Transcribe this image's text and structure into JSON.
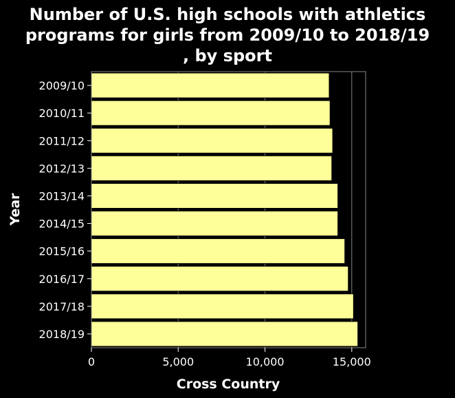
{
  "chart_data": {
    "type": "bar",
    "orientation": "horizontal",
    "title_lines": [
      "Number of U.S. high schools with athletics",
      "programs for girls from 2009/10 to 2018/19",
      ", by sport"
    ],
    "xlabel": "Cross Country",
    "ylabel": "Year",
    "categories": [
      "2009/10",
      "2010/11",
      "2011/12",
      "2012/13",
      "2013/14",
      "2014/15",
      "2015/16",
      "2016/17",
      "2017/18",
      "2018/19"
    ],
    "values": [
      13700,
      13750,
      13900,
      13850,
      14200,
      14200,
      14600,
      14800,
      15100,
      15350
    ],
    "xlim": [
      0,
      15800
    ],
    "xticks": [
      0,
      5000,
      10000,
      15000
    ],
    "xtick_labels": [
      "0",
      "5,000",
      "10,000",
      "15,000"
    ],
    "grid": true,
    "colors": {
      "background": "#000000",
      "bar": "#ffff99",
      "bar_edge": "#000000",
      "grid": "#888888",
      "text": "#ffffff"
    }
  }
}
